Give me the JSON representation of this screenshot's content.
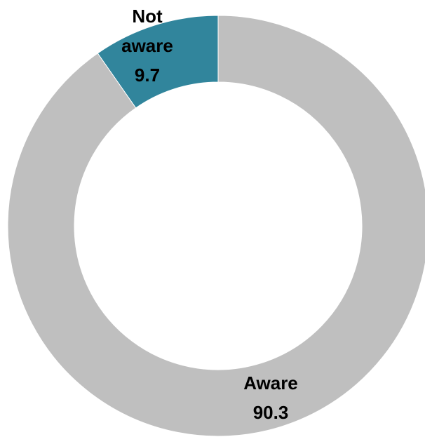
{
  "chart_data": {
    "type": "pie",
    "style": "donut",
    "slices": [
      {
        "label_lines": [
          "Not",
          "aware"
        ],
        "value": 9.7,
        "value_text": "9.7",
        "color": "#31859c"
      },
      {
        "label_lines": [
          "Aware"
        ],
        "value": 90.3,
        "value_text": "90.3",
        "color": "#bfbfbf"
      }
    ],
    "label_color": "#000000",
    "background": "#ffffff"
  }
}
